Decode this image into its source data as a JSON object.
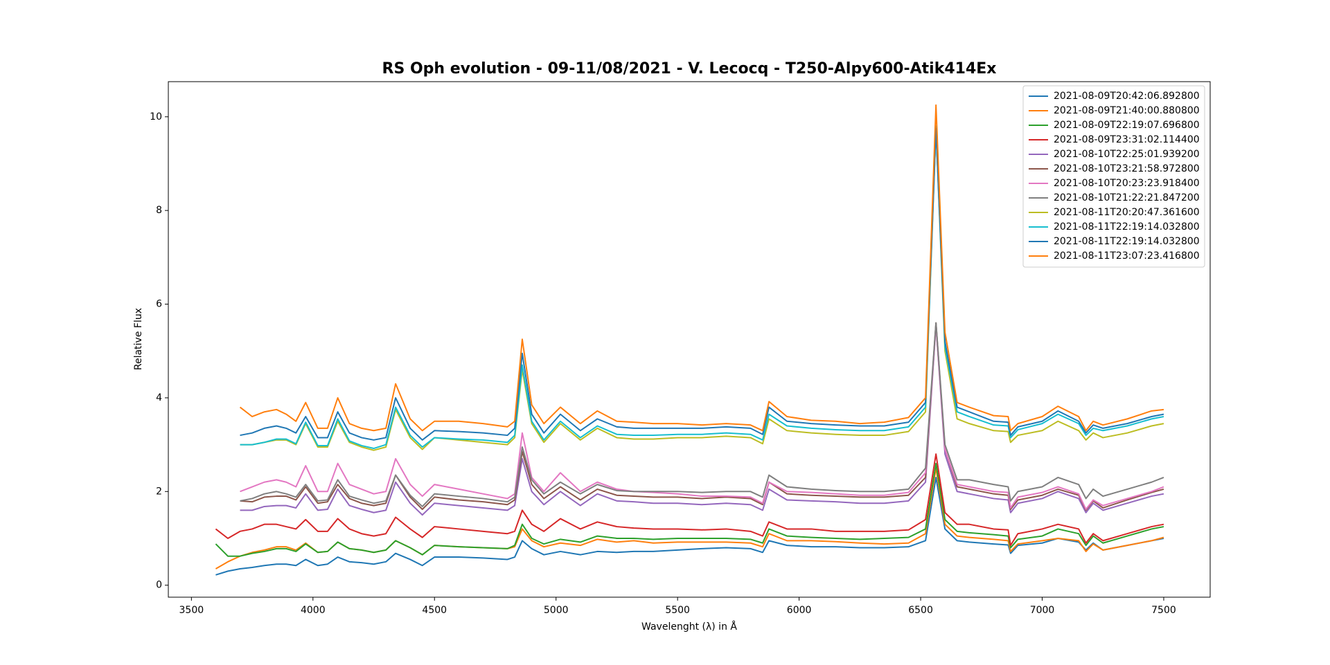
{
  "chart_data": {
    "type": "line",
    "title": "RS Oph evolution - 09-11/08/2021 - V. Lecocq - T250-Alpy600-Atik414Ex",
    "x_label": "Wavelenght (λ) in Å",
    "y_label": "Relative Flux",
    "xlim": [
      3405,
      7691
    ],
    "ylim": [
      -0.256,
      10.75
    ],
    "xticks": [
      3500,
      4000,
      4500,
      5000,
      5500,
      6000,
      6500,
      7000,
      7500
    ],
    "yticks": [
      0,
      2,
      4,
      6,
      8,
      10
    ],
    "legend": "upper right",
    "x": [
      3600,
      3650,
      3700,
      3750,
      3800,
      3850,
      3890,
      3930,
      3970,
      4020,
      4060,
      4102,
      4150,
      4200,
      4250,
      4300,
      4340,
      4400,
      4450,
      4500,
      4600,
      4700,
      4800,
      4830,
      4861,
      4900,
      4950,
      5018,
      5100,
      5170,
      5250,
      5320,
      5400,
      5500,
      5600,
      5700,
      5800,
      5850,
      5876,
      5950,
      6050,
      6150,
      6250,
      6350,
      6450,
      6520,
      6563,
      6600,
      6650,
      6700,
      6800,
      6860,
      6870,
      6900,
      7000,
      7065,
      7150,
      7180,
      7210,
      7250,
      7350,
      7450,
      7500
    ],
    "series": [
      {
        "name": "2021-08-09T20:42:06.892800",
        "color": "#1f77b4",
        "values": [
          0.22,
          0.3,
          0.35,
          0.38,
          0.42,
          0.45,
          0.45,
          0.42,
          0.55,
          0.42,
          0.45,
          0.6,
          0.5,
          0.48,
          0.45,
          0.5,
          0.68,
          0.55,
          0.42,
          0.6,
          0.6,
          0.58,
          0.55,
          0.6,
          0.95,
          0.78,
          0.65,
          0.72,
          0.65,
          0.72,
          0.7,
          0.72,
          0.72,
          0.75,
          0.78,
          0.8,
          0.78,
          0.7,
          0.95,
          0.85,
          0.82,
          0.82,
          0.8,
          0.8,
          0.82,
          0.95,
          2.3,
          1.2,
          0.95,
          0.92,
          0.88,
          0.86,
          0.68,
          0.85,
          0.9,
          1.0,
          0.92,
          0.75,
          0.9,
          0.75,
          0.85,
          0.95,
          1.0
        ]
      },
      {
        "name": "2021-08-09T21:40:00.880800",
        "color": "#ff7f0e",
        "values": [
          0.35,
          0.5,
          0.62,
          0.7,
          0.75,
          0.82,
          0.82,
          0.75,
          0.9,
          0.7,
          0.72,
          0.92,
          0.78,
          0.75,
          0.7,
          0.75,
          0.95,
          0.8,
          0.65,
          0.85,
          0.82,
          0.8,
          0.78,
          0.82,
          1.2,
          0.95,
          0.82,
          0.9,
          0.85,
          0.98,
          0.92,
          0.95,
          0.9,
          0.92,
          0.92,
          0.92,
          0.9,
          0.82,
          1.1,
          0.95,
          0.95,
          0.93,
          0.9,
          0.88,
          0.9,
          1.1,
          2.5,
          1.3,
          1.05,
          1.02,
          0.98,
          0.95,
          0.72,
          0.88,
          0.95,
          1.0,
          0.95,
          0.72,
          0.88,
          0.75,
          0.85,
          0.95,
          1.02
        ]
      },
      {
        "name": "2021-08-09T22:19:07.696800",
        "color": "#2ca02c",
        "values": [
          0.88,
          0.62,
          0.62,
          0.68,
          0.72,
          0.78,
          0.78,
          0.72,
          0.88,
          0.7,
          0.72,
          0.92,
          0.78,
          0.75,
          0.7,
          0.75,
          0.95,
          0.8,
          0.65,
          0.85,
          0.82,
          0.8,
          0.78,
          0.85,
          1.3,
          1.0,
          0.88,
          0.98,
          0.92,
          1.05,
          1.0,
          1.0,
          0.98,
          1.0,
          1.0,
          1.0,
          0.98,
          0.9,
          1.2,
          1.05,
          1.02,
          1.0,
          0.98,
          1.0,
          1.02,
          1.2,
          2.6,
          1.4,
          1.15,
          1.12,
          1.08,
          1.05,
          0.8,
          0.98,
          1.05,
          1.2,
          1.1,
          0.85,
          1.05,
          0.9,
          1.05,
          1.2,
          1.25
        ]
      },
      {
        "name": "2021-08-09T23:31:02.114400",
        "color": "#d62728",
        "values": [
          1.2,
          1.0,
          1.15,
          1.2,
          1.3,
          1.3,
          1.25,
          1.2,
          1.4,
          1.15,
          1.15,
          1.42,
          1.2,
          1.1,
          1.05,
          1.1,
          1.45,
          1.2,
          1.02,
          1.25,
          1.2,
          1.15,
          1.1,
          1.15,
          1.6,
          1.3,
          1.15,
          1.42,
          1.2,
          1.35,
          1.25,
          1.22,
          1.2,
          1.2,
          1.18,
          1.2,
          1.15,
          1.05,
          1.35,
          1.2,
          1.2,
          1.15,
          1.15,
          1.15,
          1.18,
          1.4,
          2.8,
          1.55,
          1.3,
          1.3,
          1.2,
          1.18,
          0.85,
          1.1,
          1.2,
          1.3,
          1.2,
          0.9,
          1.1,
          0.95,
          1.1,
          1.25,
          1.3
        ]
      },
      {
        "name": "2021-08-10T22:25:01.939200",
        "color": "#9467bd",
        "values": [
          null,
          null,
          1.6,
          1.6,
          1.68,
          1.7,
          1.7,
          1.65,
          1.95,
          1.6,
          1.62,
          2.05,
          1.7,
          1.62,
          1.55,
          1.6,
          2.2,
          1.75,
          1.5,
          1.75,
          1.7,
          1.65,
          1.6,
          1.7,
          2.7,
          2.0,
          1.72,
          2.0,
          1.7,
          1.95,
          1.8,
          1.78,
          1.75,
          1.75,
          1.72,
          1.75,
          1.72,
          1.6,
          2.05,
          1.82,
          1.8,
          1.78,
          1.75,
          1.75,
          1.8,
          2.2,
          5.55,
          2.8,
          2.0,
          1.95,
          1.85,
          1.82,
          1.55,
          1.75,
          1.85,
          2.0,
          1.85,
          1.55,
          1.75,
          1.6,
          1.75,
          1.9,
          1.95
        ]
      },
      {
        "name": "2021-08-10T23:21:58.972800",
        "color": "#8c564b",
        "values": [
          null,
          null,
          1.8,
          1.78,
          1.88,
          1.9,
          1.9,
          1.82,
          2.1,
          1.75,
          1.78,
          2.15,
          1.85,
          1.75,
          1.7,
          1.75,
          2.35,
          1.88,
          1.62,
          1.88,
          1.82,
          1.78,
          1.72,
          1.82,
          2.85,
          2.15,
          1.85,
          2.1,
          1.82,
          2.05,
          1.92,
          1.9,
          1.88,
          1.88,
          1.85,
          1.88,
          1.85,
          1.72,
          2.2,
          1.95,
          1.92,
          1.9,
          1.88,
          1.88,
          1.92,
          2.3,
          5.6,
          2.9,
          2.1,
          2.05,
          1.95,
          1.92,
          1.62,
          1.82,
          1.92,
          2.05,
          1.92,
          1.6,
          1.8,
          1.65,
          1.82,
          1.98,
          2.05
        ]
      },
      {
        "name": "2021-08-10T20:23:23.918400",
        "color": "#e377c2",
        "values": [
          null,
          null,
          2.0,
          2.1,
          2.2,
          2.25,
          2.2,
          2.1,
          2.55,
          2.0,
          2.0,
          2.6,
          2.15,
          2.05,
          1.95,
          2.0,
          2.7,
          2.15,
          1.9,
          2.15,
          2.05,
          1.95,
          1.85,
          1.95,
          3.25,
          2.3,
          2.0,
          2.4,
          2.0,
          2.2,
          2.05,
          2.0,
          1.98,
          1.95,
          1.9,
          1.9,
          1.88,
          1.75,
          2.2,
          2.0,
          1.98,
          1.95,
          1.92,
          1.92,
          1.98,
          2.4,
          5.55,
          2.9,
          2.15,
          2.1,
          2.0,
          1.98,
          1.65,
          1.88,
          1.98,
          2.1,
          1.95,
          1.62,
          1.82,
          1.7,
          1.85,
          2.0,
          2.1
        ]
      },
      {
        "name": "2021-08-10T21:22:21.847200",
        "color": "#7f7f7f",
        "values": [
          null,
          null,
          1.8,
          1.85,
          1.95,
          2.0,
          1.95,
          1.88,
          2.15,
          1.8,
          1.82,
          2.25,
          1.9,
          1.82,
          1.75,
          1.8,
          2.35,
          1.92,
          1.68,
          1.95,
          1.9,
          1.85,
          1.78,
          1.88,
          2.95,
          2.25,
          1.95,
          2.2,
          1.95,
          2.15,
          2.02,
          2.0,
          2.0,
          2.0,
          1.98,
          2.0,
          2.0,
          1.88,
          2.35,
          2.1,
          2.05,
          2.02,
          2.0,
          2.0,
          2.05,
          2.5,
          5.6,
          3.0,
          2.25,
          2.25,
          2.15,
          2.1,
          1.8,
          2.0,
          2.1,
          2.3,
          2.15,
          1.85,
          2.05,
          1.9,
          2.05,
          2.2,
          2.3
        ]
      },
      {
        "name": "2021-08-11T20:20:47.361600",
        "color": "#bcbd22",
        "values": [
          null,
          null,
          3.0,
          3.0,
          3.05,
          3.1,
          3.1,
          3.0,
          3.45,
          2.95,
          2.95,
          3.5,
          3.05,
          2.95,
          2.88,
          2.95,
          3.75,
          3.15,
          2.9,
          3.15,
          3.1,
          3.05,
          3.0,
          3.15,
          4.6,
          3.45,
          3.05,
          3.45,
          3.1,
          3.35,
          3.15,
          3.12,
          3.12,
          3.15,
          3.15,
          3.18,
          3.15,
          3.02,
          3.55,
          3.3,
          3.25,
          3.22,
          3.2,
          3.2,
          3.28,
          3.7,
          9.75,
          5.0,
          3.55,
          3.45,
          3.3,
          3.28,
          3.05,
          3.2,
          3.3,
          3.5,
          3.3,
          3.1,
          3.25,
          3.15,
          3.25,
          3.4,
          3.45
        ]
      },
      {
        "name": "2021-08-11T22:19:14.032800",
        "color": "#17becf",
        "values": [
          null,
          null,
          3.0,
          3.0,
          3.05,
          3.12,
          3.12,
          3.02,
          3.48,
          2.98,
          2.98,
          3.55,
          3.08,
          2.98,
          2.92,
          3.0,
          3.8,
          3.2,
          2.95,
          3.15,
          3.12,
          3.1,
          3.05,
          3.2,
          4.7,
          3.5,
          3.1,
          3.5,
          3.15,
          3.4,
          3.22,
          3.2,
          3.2,
          3.22,
          3.22,
          3.25,
          3.22,
          3.1,
          3.65,
          3.4,
          3.35,
          3.32,
          3.3,
          3.3,
          3.38,
          3.8,
          9.8,
          5.1,
          3.7,
          3.6,
          3.42,
          3.4,
          3.15,
          3.32,
          3.45,
          3.65,
          3.45,
          3.2,
          3.35,
          3.3,
          3.4,
          3.55,
          3.6
        ]
      },
      {
        "name": "2021-08-11T22:19:14.032800",
        "color": "#1f77b4",
        "values": [
          null,
          null,
          3.2,
          3.25,
          3.35,
          3.4,
          3.35,
          3.25,
          3.6,
          3.15,
          3.15,
          3.7,
          3.25,
          3.15,
          3.1,
          3.15,
          4.0,
          3.35,
          3.1,
          3.3,
          3.28,
          3.25,
          3.2,
          3.35,
          4.95,
          3.65,
          3.25,
          3.65,
          3.3,
          3.55,
          3.38,
          3.35,
          3.35,
          3.35,
          3.35,
          3.38,
          3.35,
          3.22,
          3.8,
          3.5,
          3.45,
          3.42,
          3.4,
          3.4,
          3.48,
          3.9,
          9.75,
          5.2,
          3.8,
          3.7,
          3.5,
          3.48,
          3.2,
          3.38,
          3.5,
          3.72,
          3.5,
          3.25,
          3.42,
          3.35,
          3.45,
          3.6,
          3.65
        ]
      },
      {
        "name": "2021-08-11T23:07:23.416800",
        "color": "#ff7f0e",
        "values": [
          null,
          null,
          3.8,
          3.6,
          3.7,
          3.75,
          3.65,
          3.5,
          3.9,
          3.35,
          3.35,
          4.0,
          3.45,
          3.35,
          3.3,
          3.35,
          4.3,
          3.55,
          3.3,
          3.5,
          3.5,
          3.45,
          3.38,
          3.5,
          5.25,
          3.85,
          3.45,
          3.8,
          3.45,
          3.72,
          3.5,
          3.48,
          3.45,
          3.45,
          3.42,
          3.45,
          3.42,
          3.3,
          3.92,
          3.6,
          3.52,
          3.5,
          3.45,
          3.48,
          3.58,
          4.0,
          10.25,
          5.4,
          3.9,
          3.8,
          3.62,
          3.6,
          3.3,
          3.45,
          3.6,
          3.82,
          3.6,
          3.3,
          3.5,
          3.42,
          3.55,
          3.72,
          3.75
        ]
      }
    ]
  }
}
